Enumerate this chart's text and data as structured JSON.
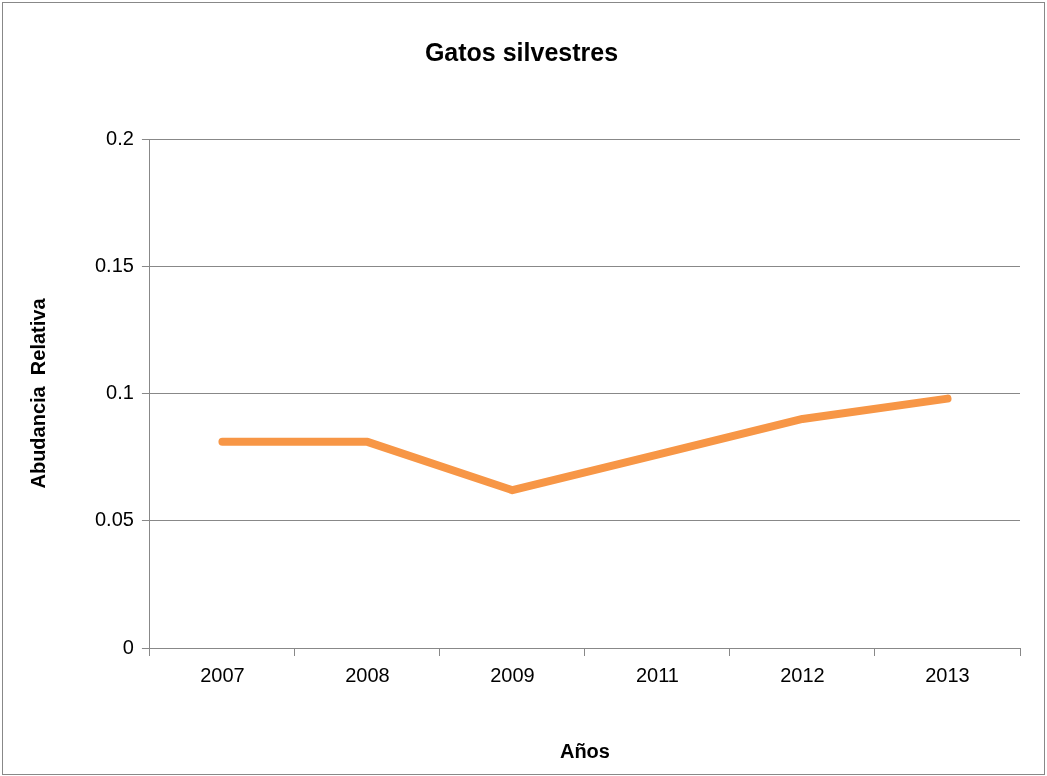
{
  "chart_data": {
    "type": "line",
    "title": "Gatos silvestres",
    "xlabel": "Años",
    "ylabel": "Abudancia  Relativa",
    "categories": [
      "2007",
      "2008",
      "2009",
      "2011",
      "2012",
      "2013"
    ],
    "series": [
      {
        "color": "#f79646",
        "values": [
          0.081,
          0.081,
          0.062,
          0.076,
          0.09,
          0.098
        ]
      }
    ],
    "ylim": [
      0,
      0.2
    ],
    "yticks": [
      0,
      0.05,
      0.1,
      0.15,
      0.2
    ],
    "grid": "y",
    "legend": false,
    "marker": "none",
    "line_style": "solid"
  }
}
